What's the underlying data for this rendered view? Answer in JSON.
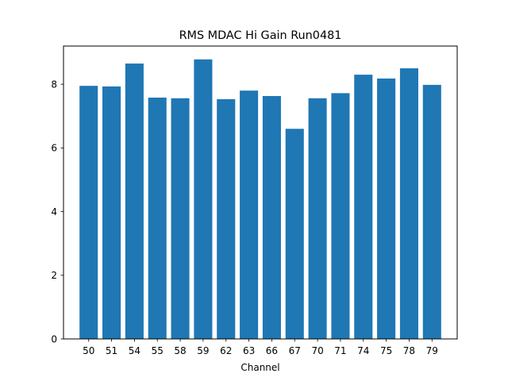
{
  "chart_data": {
    "type": "bar",
    "title": "RMS MDAC Hi Gain Run0481",
    "xlabel": "Channel",
    "ylabel": "",
    "categories": [
      "50",
      "51",
      "54",
      "55",
      "58",
      "59",
      "62",
      "63",
      "66",
      "67",
      "70",
      "71",
      "74",
      "75",
      "78",
      "79"
    ],
    "values": [
      7.95,
      7.93,
      8.65,
      7.58,
      7.56,
      8.78,
      7.53,
      7.8,
      7.63,
      6.6,
      7.56,
      7.72,
      8.3,
      8.18,
      8.5,
      7.98
    ],
    "ylim": [
      0,
      9.2
    ],
    "yticks": [
      0,
      2,
      4,
      6,
      8
    ],
    "grid": false,
    "bar_color": "#1f77b4"
  }
}
